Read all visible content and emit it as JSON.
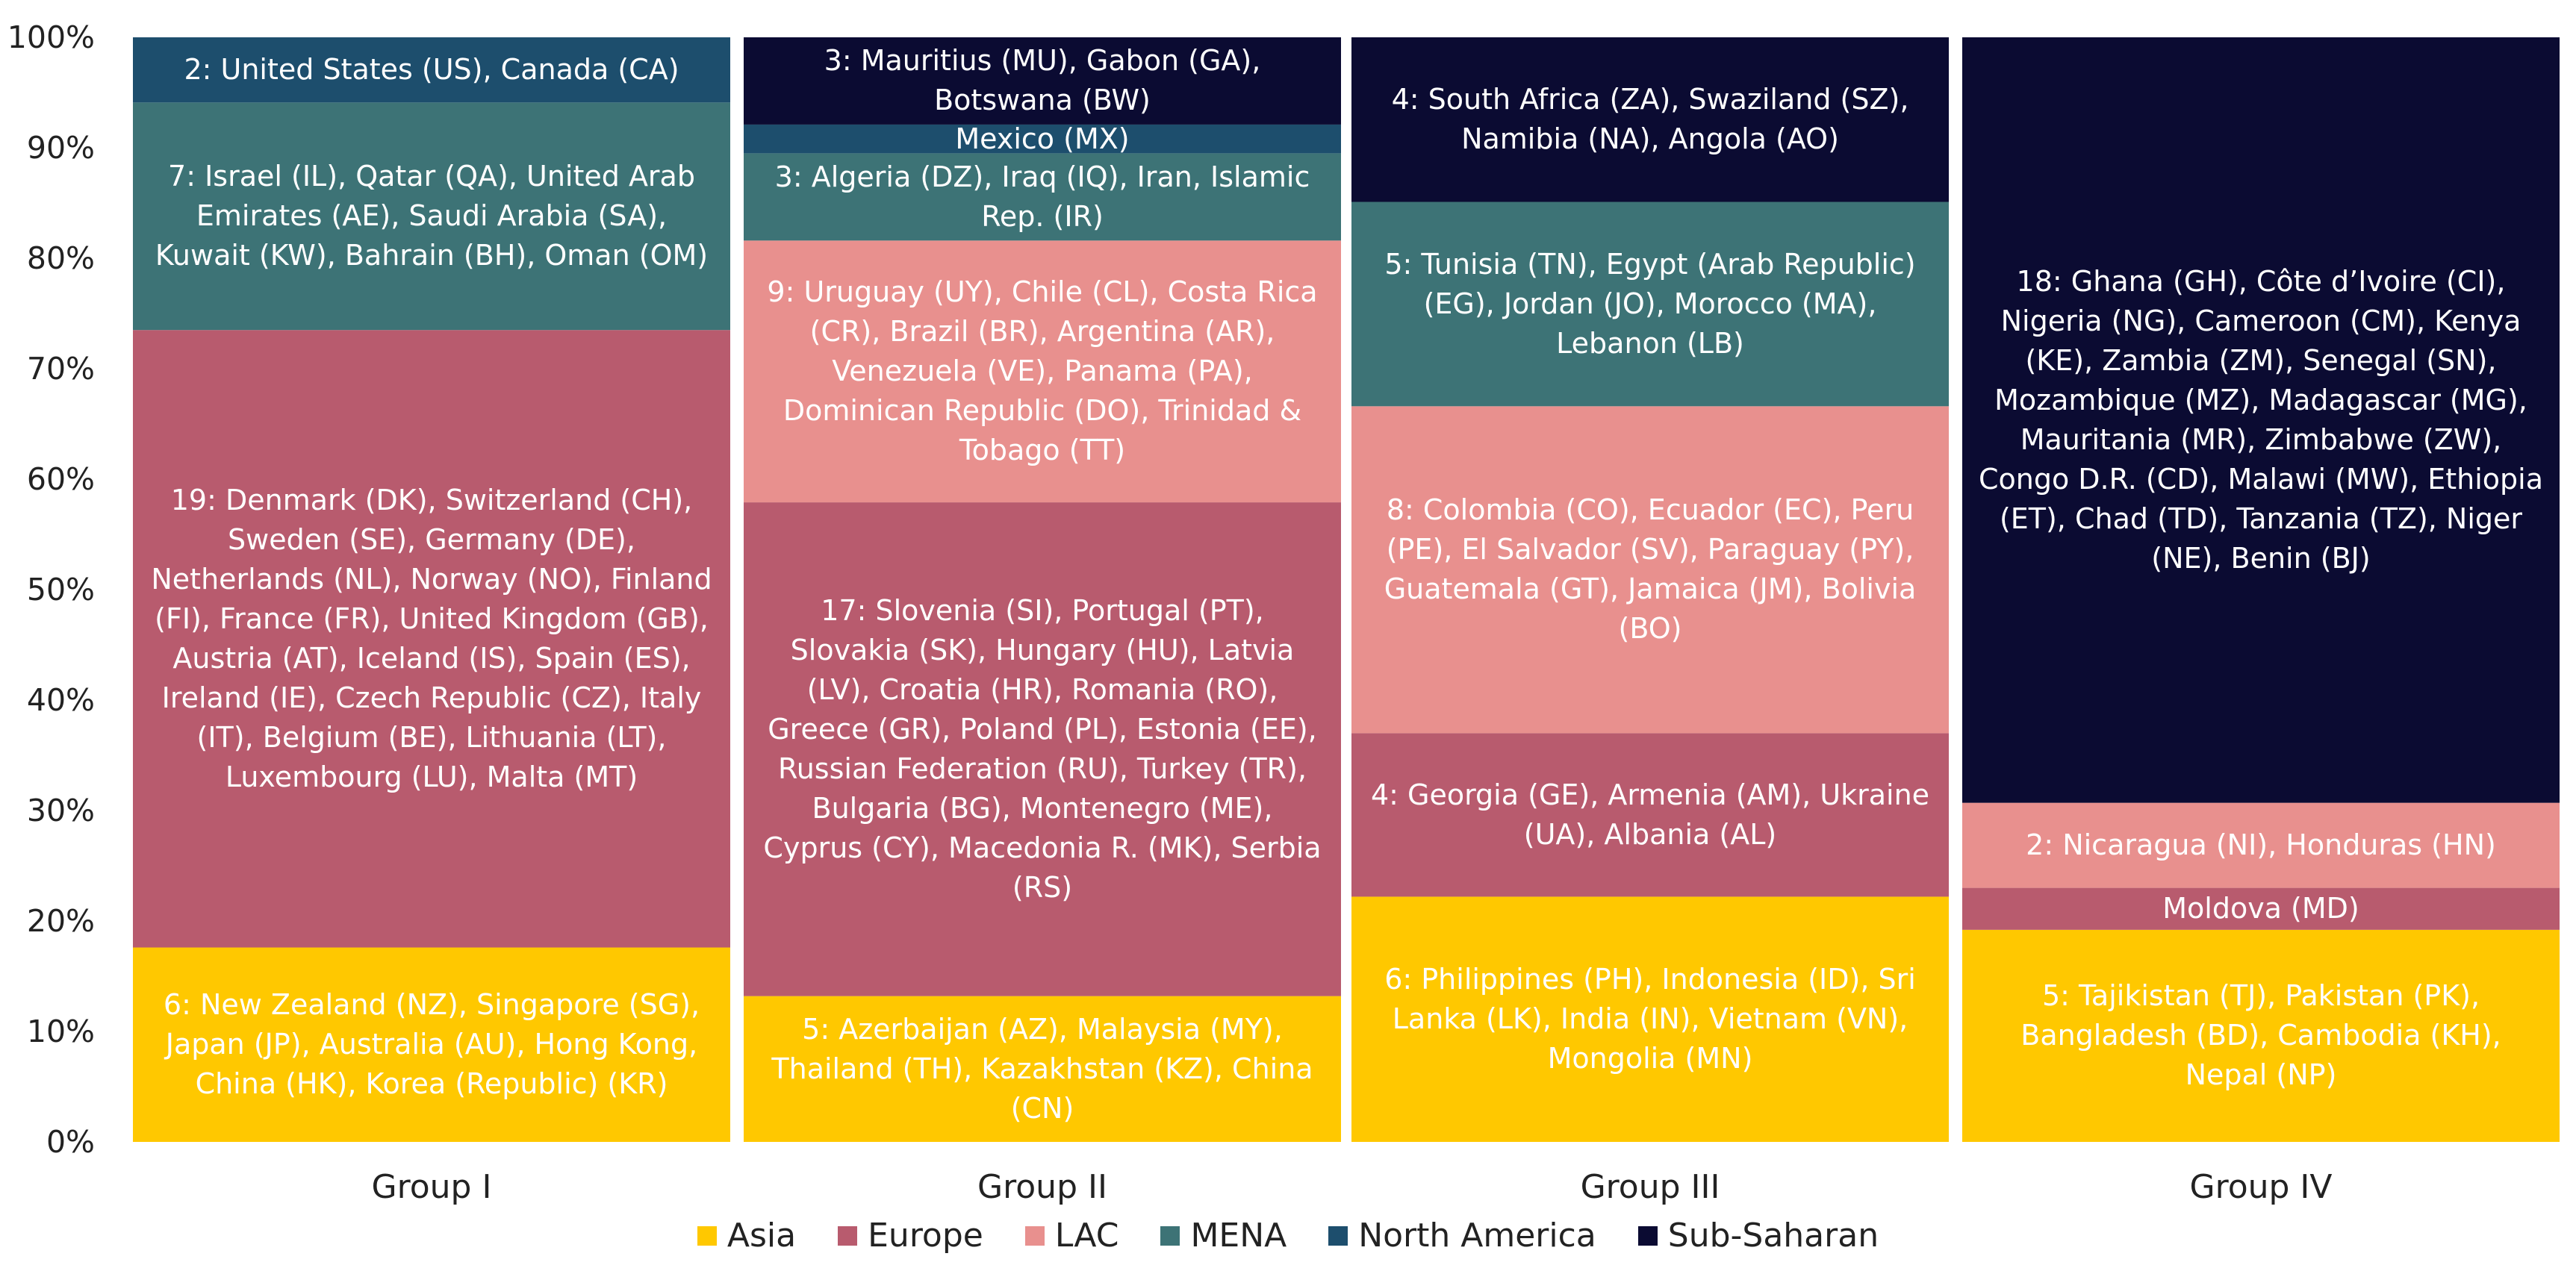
{
  "chart_data": {
    "type": "bar",
    "stacked": true,
    "ylim": [
      0,
      100
    ],
    "yticks": [
      "0%",
      "10%",
      "20%",
      "30%",
      "40%",
      "50%",
      "60%",
      "70%",
      "80%",
      "90%",
      "100%"
    ],
    "categories": [
      "Group I",
      "Group II",
      "Group III",
      "Group IV"
    ],
    "colors": {
      "Asia": "#FFC800",
      "Europe": "#B85B6E",
      "LAC": "#E8908E",
      "MENA": "#3D7376",
      "North America": "#1D4E6D",
      "Sub-Saharan": "#0B0B32"
    },
    "legend": [
      "Asia",
      "Europe",
      "LAC",
      "MENA",
      "North America",
      "Sub-Saharan"
    ],
    "legend_position": "bottom",
    "grid": false,
    "series": [
      {
        "name": "Asia",
        "values": [
          17.6,
          13.2,
          22.2,
          19.2
        ],
        "labels": [
          "6: New Zealand (NZ), Singapore (SG), Japan (JP), Australia (AU), Hong Kong, China (HK), Korea (Republic) (KR)",
          "5: Azerbaijan (AZ), Malaysia (MY), Thailand (TH), Kazakhstan (KZ), China (CN)",
          "6: Philippines (PH), Indonesia (ID), Sri Lanka (LK), India (IN), Vietnam (VN), Mongolia (MN)",
          "5: Tajikistan (TJ), Pakistan (PK), Bangladesh (BD), Cambodia (KH), Nepal (NP)"
        ]
      },
      {
        "name": "Europe",
        "values": [
          55.9,
          44.7,
          14.8,
          3.8
        ],
        "labels": [
          "19: Denmark (DK), Switzerland (CH), Sweden (SE), Germany (DE), Netherlands (NL), Norway (NO), Finland (FI), France (FR), United Kingdom (GB), Austria (AT), Iceland (IS), Spain (ES), Ireland (IE), Czech Republic (CZ), Italy (IT), Belgium (BE), Lithuania (LT), Luxembourg (LU), Malta (MT)",
          "17: Slovenia (SI), Portugal (PT), Slovakia (SK), Hungary (HU), Latvia (LV), Croatia (HR), Romania (RO), Greece (GR), Poland (PL), Estonia (EE), Russian Federation (RU), Turkey (TR), Bulgaria (BG), Montenegro (ME), Cyprus (CY), Macedonia R. (MK), Serbia (RS)",
          "4: Georgia (GE), Armenia (AM), Ukraine (UA), Albania (AL)",
          "Moldova (MD)"
        ]
      },
      {
        "name": "LAC",
        "values": [
          0,
          23.7,
          29.6,
          7.7
        ],
        "labels": [
          "",
          "9: Uruguay (UY), Chile (CL), Costa Rica (CR), Brazil (BR), Argentina (AR), Venezuela (VE), Panama (PA), Dominican Republic (DO), Trinidad & Tobago (TT)",
          "8: Colombia (CO), Ecuador (EC), Peru (PE), El Salvador (SV), Paraguay (PY), Guatemala (GT), Jamaica (JM), Bolivia (BO)",
          "2: Nicaragua (NI), Honduras (HN)"
        ]
      },
      {
        "name": "MENA",
        "values": [
          20.6,
          7.9,
          18.5,
          0
        ],
        "labels": [
          "7: Israel (IL), Qatar (QA), United Arab Emirates (AE), Saudi Arabia (SA), Kuwait (KW), Bahrain (BH), Oman (OM)",
          "3: Algeria (DZ), Iraq (IQ), Iran, Islamic Rep. (IR)",
          "5: Tunisia (TN), Egypt (Arab Republic) (EG), Jordan (JO), Morocco (MA), Lebanon (LB)",
          ""
        ]
      },
      {
        "name": "North America",
        "values": [
          5.9,
          2.6,
          0,
          0
        ],
        "labels": [
          "2: United States (US), Canada (CA)",
          "Mexico (MX)",
          "",
          ""
        ]
      },
      {
        "name": "Sub-Saharan",
        "values": [
          0,
          7.9,
          14.9,
          69.3
        ],
        "labels": [
          "",
          "3: Mauritius (MU), Gabon (GA), Botswana (BW)",
          "4: South Africa (ZA), Swaziland (SZ), Namibia (NA), Angola (AO)",
          "18: Ghana (GH), Côte d’Ivoire (CI), Nigeria (NG), Cameroon (CM), Kenya (KE), Zambia (ZM), Senegal (SN), Mozambique (MZ), Madagascar (MG), Mauritania (MR), Zimbabwe (ZW), Congo D.R. (CD), Malawi (MW), Ethiopia (ET), Chad (TD), Tanzania (TZ), Niger (NE), Benin (BJ)"
        ]
      }
    ]
  }
}
